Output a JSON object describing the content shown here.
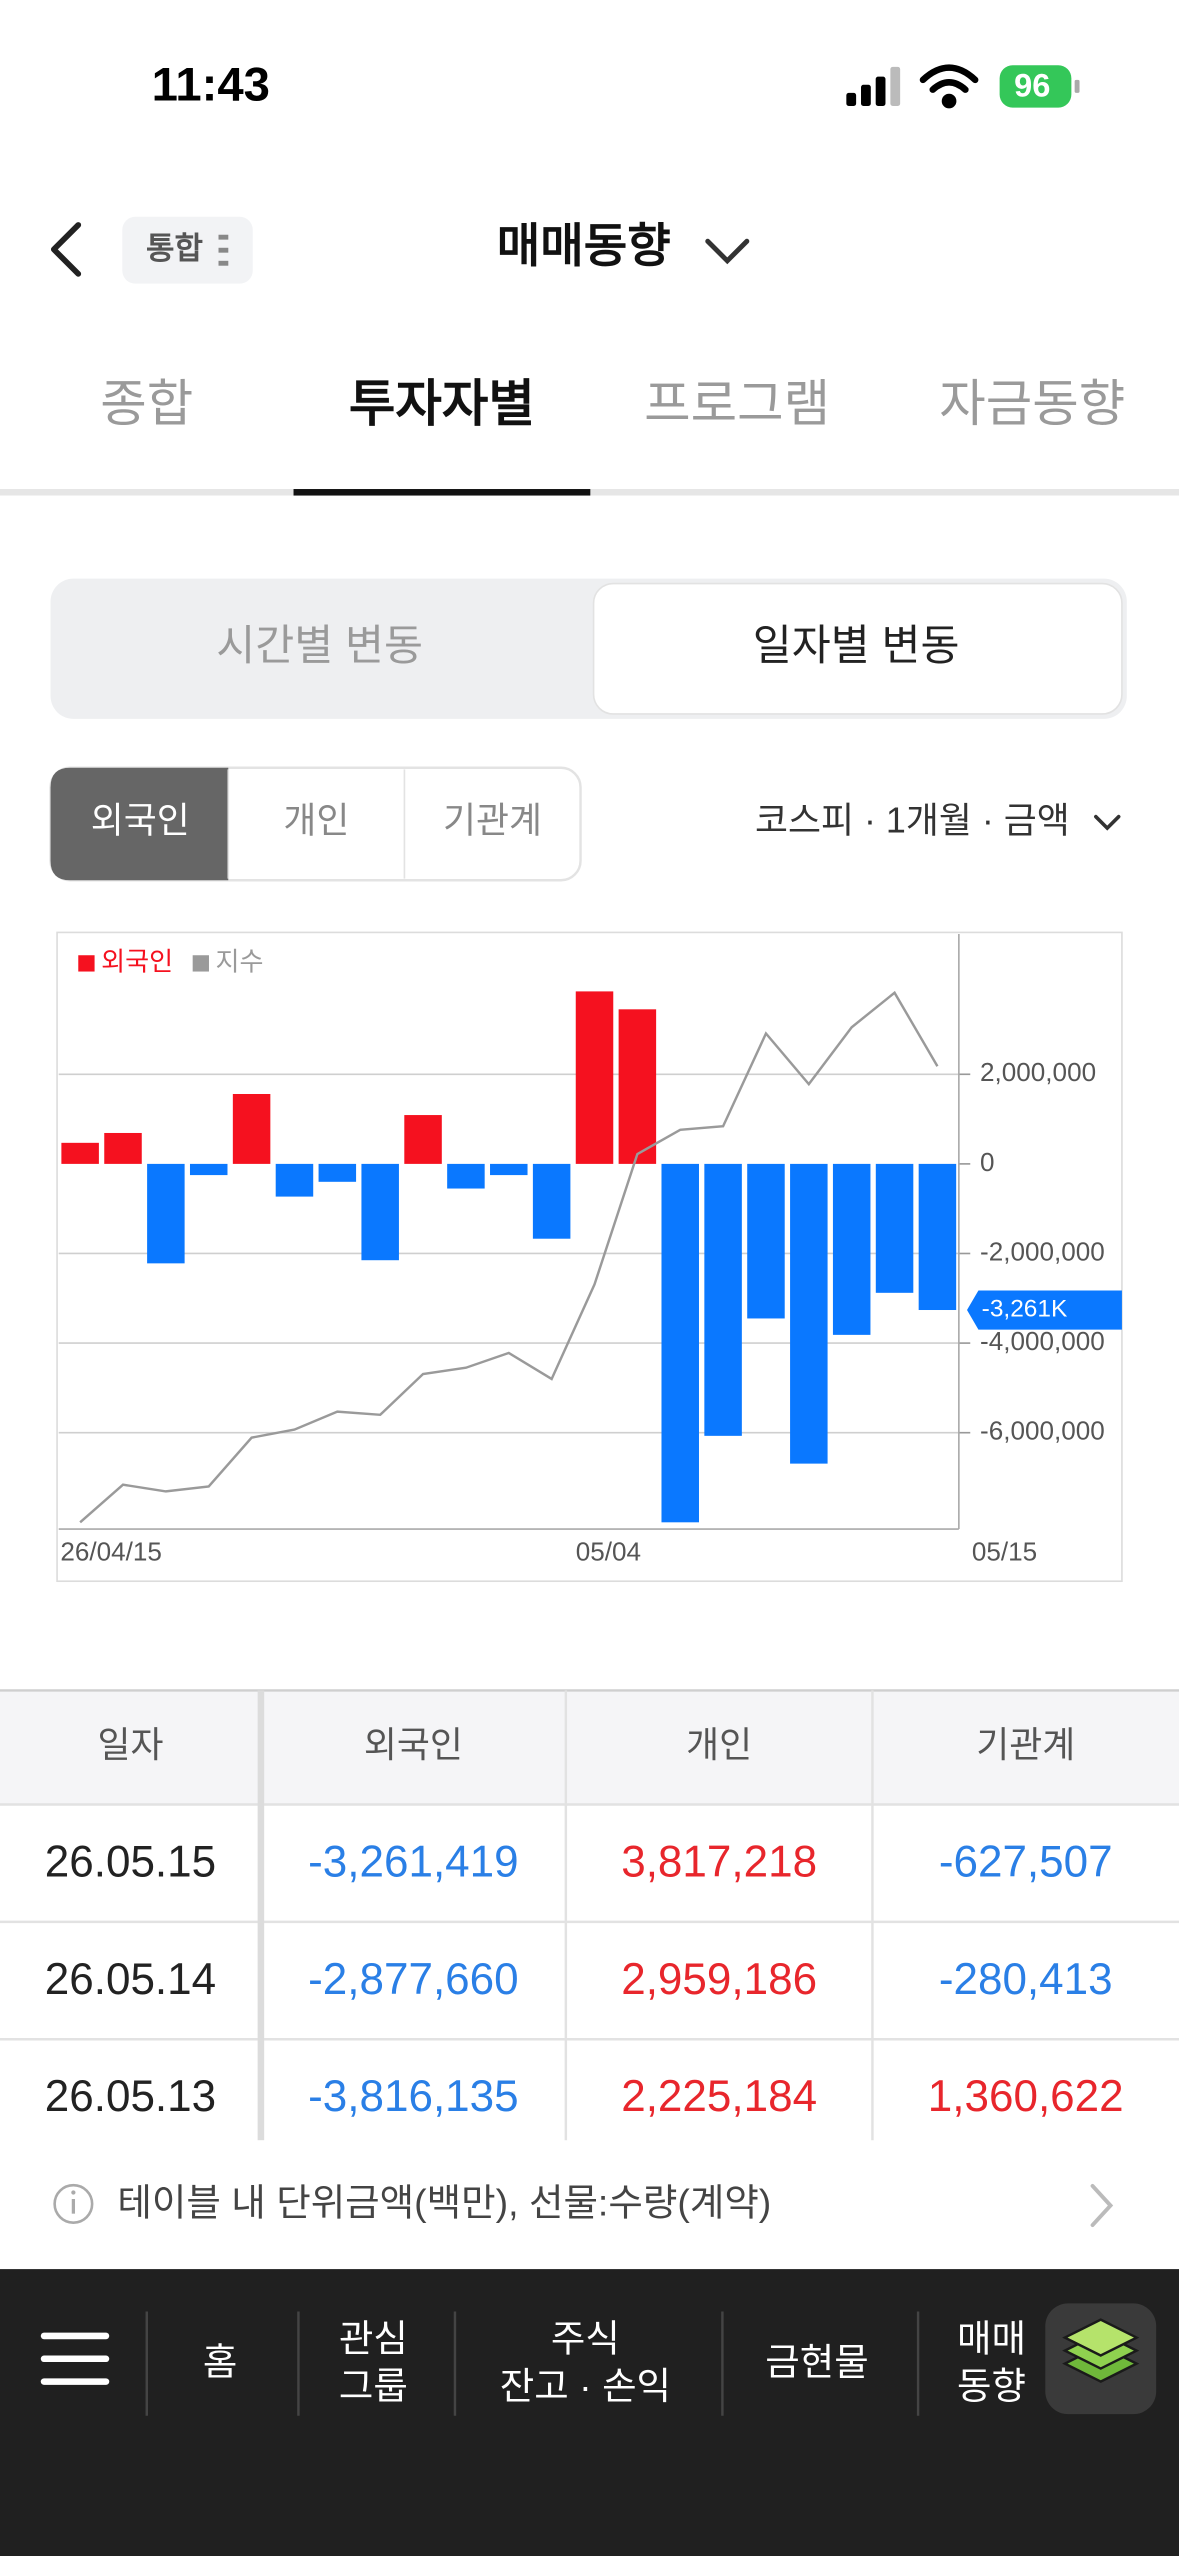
{
  "status_bar": {
    "time": "11:43",
    "battery": "96"
  },
  "header": {
    "chip": "통합",
    "title": "매매동향"
  },
  "tabs": {
    "items": [
      "종합",
      "투자자별",
      "프로그램",
      "자금동향"
    ],
    "active": 1
  },
  "segment": {
    "items": [
      "시간별 변동",
      "일자별 변동"
    ],
    "active": 1
  },
  "filters": {
    "items": [
      "외국인",
      "개인",
      "기관계"
    ],
    "active": 0
  },
  "dropdown": "코스피 · 1개월 · 금액",
  "chart_data": {
    "type": "bar",
    "categories": [
      "26/04/15",
      null,
      null,
      null,
      null,
      null,
      null,
      null,
      null,
      null,
      null,
      null,
      "05/04",
      null,
      null,
      null,
      null,
      null,
      null,
      null,
      "05/15"
    ],
    "series": [
      {
        "name": "외국인",
        "type": "bar",
        "color": "#f5111f",
        "negative_color": "#0a78ff",
        "values": [
          470000,
          690000,
          -2220000,
          -250000,
          1560000,
          -730000,
          -400000,
          -2150000,
          1090000,
          -550000,
          -250000,
          -1670000,
          3850000,
          3450000,
          -8000000,
          -6070000,
          -3450000,
          -6690000,
          -3816135,
          -2877660,
          -3261419
        ],
        "value_labels": [
          null,
          null,
          null,
          null,
          null,
          null,
          null,
          null,
          null,
          null,
          null,
          null,
          null,
          null,
          null,
          null,
          null,
          null,
          null,
          null,
          "-3,261K"
        ]
      },
      {
        "name": "지수",
        "type": "line",
        "color": "#9a9a9a",
        "values": [
          -8000000,
          -7160000,
          -7310000,
          -7200000,
          -6110000,
          -5930000,
          -5530000,
          -5600000,
          -4690000,
          -4550000,
          -4220000,
          -4800000,
          -2690000,
          220000,
          760000,
          840000,
          2910000,
          1780000,
          3050000,
          3820000,
          2180000
        ]
      }
    ],
    "ylim": [
      -8150000,
      5130000
    ],
    "yticks": [
      {
        "value": 2000000,
        "label": "2,000,000"
      },
      0,
      {
        "value": -2000000,
        "label": "-2,000,000"
      },
      {
        "value": -4000000,
        "label": "-4,000,000"
      },
      {
        "value": -6000000,
        "label": "-6,000,000"
      }
    ],
    "grid": true,
    "legend": "top-left"
  },
  "table": {
    "columns": [
      "일자",
      "외국인",
      "개인",
      "기관계"
    ],
    "rows": [
      [
        "26.05.15",
        "-3,261,419",
        "3,817,218",
        "-627,507"
      ],
      [
        "26.05.14",
        "-2,877,660",
        "2,959,186",
        "-280,413"
      ],
      [
        "26.05.13",
        "-3,816,135",
        "2,225,184",
        "1,360,622"
      ]
    ]
  },
  "info": "테이블 내 단위금액(백만), 선물:수량(계약)",
  "bottom_nav": {
    "items": [
      [
        "홈"
      ],
      [
        "관심",
        "그룹"
      ],
      [
        "주식",
        "잔고 · 손익"
      ],
      [
        "금현물"
      ],
      [
        "매매",
        "동향"
      ]
    ]
  }
}
